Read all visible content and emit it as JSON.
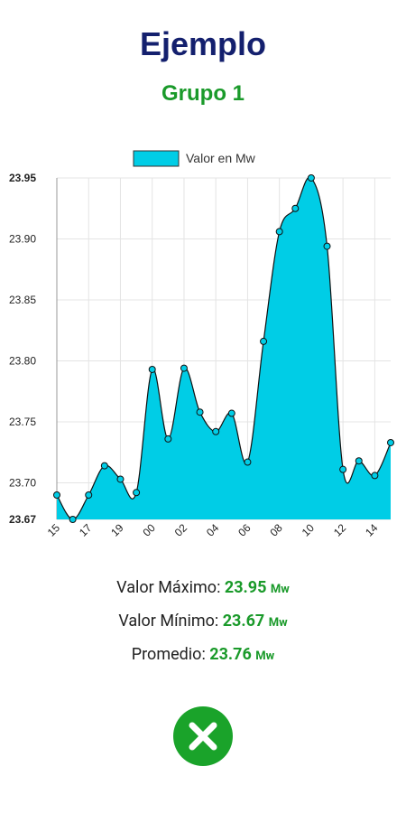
{
  "header": {
    "title": "Ejemplo",
    "subtitle": "Grupo 1"
  },
  "chart_data": {
    "type": "area",
    "categories": [
      "15",
      null,
      "17",
      null,
      "19",
      null,
      "00",
      null,
      "02",
      null,
      "04",
      null,
      "06",
      null,
      "08",
      null,
      "10",
      null,
      "12",
      null,
      "14",
      null
    ],
    "series": [
      {
        "name": "Valor en Mw",
        "color": "#00cde6",
        "values": [
          23.69,
          23.67,
          23.69,
          23.714,
          23.703,
          23.692,
          23.793,
          23.736,
          23.794,
          23.758,
          23.742,
          23.757,
          23.717,
          23.816,
          23.906,
          23.925,
          23.95,
          23.894,
          23.711,
          23.718,
          23.706,
          23.733
        ]
      }
    ],
    "ylim": [
      23.67,
      23.95
    ],
    "yticks": [
      23.67,
      {
        "value": 23.7,
        "label": "23.70"
      },
      23.75,
      {
        "value": 23.8,
        "label": "23.80"
      },
      23.85,
      {
        "value": 23.9,
        "label": "23.90"
      },
      23.95
    ],
    "grid": true,
    "legend": "top"
  },
  "stats": [
    {
      "label": "Valor Máximo:",
      "value": "23.95",
      "unit": "Mw"
    },
    {
      "label": "Valor Mínimo:",
      "value": "23.67",
      "unit": "Mw"
    },
    {
      "label": "Promedio:",
      "value": "23.76",
      "unit": "Mw"
    }
  ]
}
